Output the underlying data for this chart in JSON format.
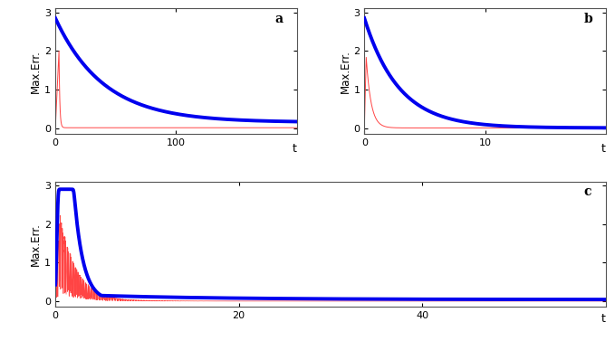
{
  "panel_a": {
    "label": "a",
    "t_max": 200,
    "blue_start": 2.85,
    "blue_end": 0.15,
    "blue_decay": 0.025,
    "red_start": 2.0,
    "red_end": 0.01,
    "red_decay": 1.5,
    "red_rise_end": 3.0,
    "xticks": [
      0,
      100
    ],
    "xtick_labels": [
      "0",
      "100"
    ],
    "xlim": [
      0,
      200
    ],
    "ylim": [
      -0.15,
      3.1
    ]
  },
  "panel_b": {
    "label": "b",
    "t_max": 20,
    "blue_start": 2.85,
    "blue_end": 0.005,
    "blue_decay": 0.35,
    "red_start": 1.85,
    "red_end": 0.005,
    "red_decay": 2.5,
    "red_rise_end": 0.15,
    "xticks": [
      0,
      10
    ],
    "xtick_labels": [
      "0",
      "10"
    ],
    "xlim": [
      0,
      20
    ],
    "ylim": [
      -0.15,
      3.1
    ]
  },
  "panel_c": {
    "label": "c",
    "t_max": 60,
    "xticks": [
      0,
      20,
      40
    ],
    "xtick_labels": [
      "0",
      "20",
      "40"
    ],
    "xlim": [
      0,
      60
    ],
    "ylim": [
      -0.15,
      3.1
    ]
  },
  "blue_color": "#0000EE",
  "red_color": "#FF4444",
  "blue_linewidth": 2.8,
  "red_linewidth": 0.7,
  "ylabel": "Max.Err.",
  "xlabel": "t",
  "background_color": "#FFFFFF",
  "yticks": [
    0,
    1,
    2,
    3
  ]
}
